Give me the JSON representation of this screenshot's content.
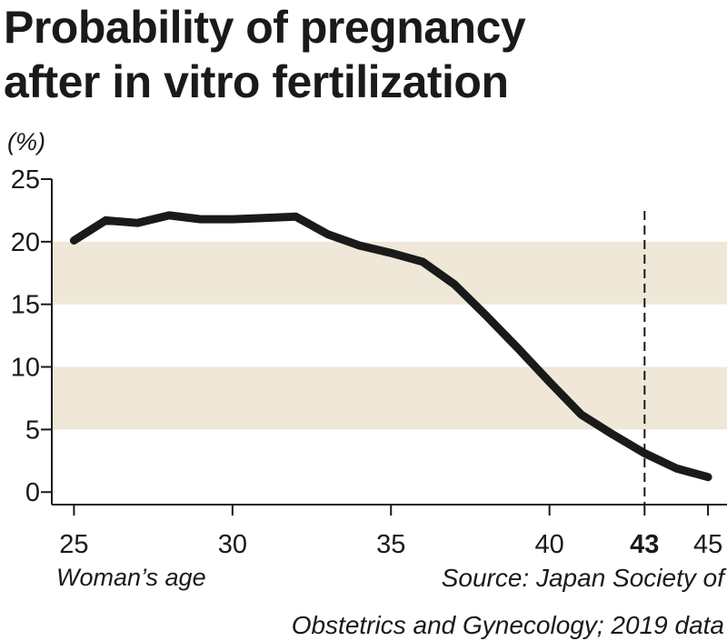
{
  "chart_data": {
    "type": "line",
    "title_lines": [
      "Probability of pregnancy",
      "after in vitro fertilization"
    ],
    "ylabel": "(%)",
    "xlabel": "Woman’s age",
    "source_lines": [
      "Source: Japan Society of",
      "Obstetrics and Gynecology; 2019 data"
    ],
    "xlim": [
      24.3,
      45.6
    ],
    "ylim": [
      -1,
      25
    ],
    "yticks": [
      0,
      5,
      10,
      15,
      20,
      25
    ],
    "xticks": [
      25,
      30,
      35,
      40,
      43,
      45
    ],
    "highlight_x": 43,
    "bands": [
      [
        5,
        10
      ],
      [
        15,
        20
      ]
    ],
    "series": [
      {
        "x": [
          25,
          26,
          27,
          28,
          29,
          30,
          31,
          32,
          33,
          34,
          35,
          36,
          37,
          38,
          39,
          40,
          41,
          42,
          43,
          44,
          45
        ],
        "y": [
          20.1,
          21.7,
          21.5,
          22.1,
          21.8,
          21.8,
          21.9,
          22.0,
          20.6,
          19.7,
          19.1,
          18.4,
          16.6,
          14.1,
          11.5,
          8.8,
          6.2,
          4.6,
          3.1,
          1.9,
          1.2
        ]
      }
    ],
    "colors": {
      "line": "#1a1a1a",
      "band": "#efe8d8",
      "axis": "#1a1a1a"
    }
  }
}
